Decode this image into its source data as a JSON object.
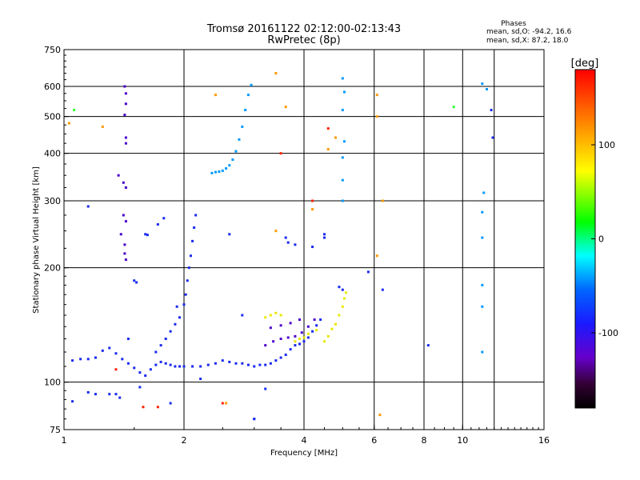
{
  "chart_data": {
    "type": "scatter",
    "title": "Tromsø 20161122 02:12:00-02:13:43",
    "subtitle": "RwPretec (8p)",
    "xlabel": "Frequency [MHz]",
    "ylabel": "Stationary phase Virtual Height [km]",
    "x_scale": "log",
    "y_scale": "log",
    "xlim": [
      1,
      16
    ],
    "ylim": [
      75,
      750
    ],
    "x_ticks": [
      1,
      2,
      4,
      6,
      8,
      10,
      16
    ],
    "x_tick_labels": [
      "1",
      "2",
      "4",
      "6",
      "8",
      "10",
      "16"
    ],
    "x_gridlines": [
      2,
      4,
      6,
      8,
      10,
      12
    ],
    "y_ticks": [
      75,
      100,
      200,
      300,
      400,
      500,
      600,
      750
    ],
    "y_tick_labels": [
      "75",
      "100",
      "200",
      "300",
      "400",
      "500",
      "600",
      "750"
    ],
    "y_gridlines": [
      100,
      200,
      300,
      400,
      500,
      600
    ],
    "grid": true,
    "phases_legend": {
      "header": "Phases",
      "line1": "mean, sd,O: -94.2, 16.6",
      "line2": "mean, sd,X: 87.2, 18.0"
    },
    "colorbar": {
      "label": "[deg]",
      "range": [
        -180,
        180
      ],
      "ticks": [
        100,
        0,
        -100
      ],
      "tick_labels": [
        "100",
        "0",
        "-100"
      ],
      "stops": [
        {
          "at": 0.0,
          "color": "#000000"
        },
        {
          "at": 0.07,
          "color": "#330033"
        },
        {
          "at": 0.15,
          "color": "#6600cc"
        },
        {
          "at": 0.25,
          "color": "#1a1aff"
        },
        {
          "at": 0.35,
          "color": "#0066ff"
        },
        {
          "at": 0.45,
          "color": "#00ffff"
        },
        {
          "at": 0.55,
          "color": "#00ff00"
        },
        {
          "at": 0.7,
          "color": "#ffff00"
        },
        {
          "at": 0.82,
          "color": "#ff9900"
        },
        {
          "at": 1.0,
          "color": "#ff0000"
        }
      ]
    },
    "point_colors": {
      "O_trace": "#1a2aee",
      "O_trace_dark": "#4a00cc",
      "X_trace": "#e8e800",
      "cyan_cusp": "#0099ff",
      "misc_red": "#ff2200",
      "misc_orange": "#ff9900",
      "misc_green": "#33ff33"
    },
    "series": [
      {
        "group": "O_low",
        "color_key": "O_trace",
        "points": [
          [
            1.05,
            114
          ],
          [
            1.1,
            115
          ],
          [
            1.15,
            115
          ],
          [
            1.2,
            116
          ],
          [
            1.25,
            121
          ],
          [
            1.3,
            123
          ],
          [
            1.35,
            119
          ],
          [
            1.4,
            115
          ],
          [
            1.45,
            112
          ],
          [
            1.5,
            109
          ],
          [
            1.55,
            106
          ],
          [
            1.6,
            104
          ],
          [
            1.65,
            108
          ],
          [
            1.7,
            111
          ],
          [
            1.75,
            113
          ],
          [
            1.8,
            112
          ],
          [
            1.85,
            111
          ],
          [
            1.9,
            110
          ],
          [
            1.95,
            110
          ],
          [
            2.0,
            110
          ],
          [
            2.1,
            110
          ],
          [
            2.2,
            110
          ],
          [
            2.3,
            111
          ],
          [
            2.4,
            112
          ],
          [
            2.5,
            114
          ],
          [
            2.6,
            113
          ],
          [
            2.7,
            112
          ],
          [
            2.8,
            112
          ],
          [
            2.9,
            111
          ],
          [
            3.0,
            110
          ],
          [
            3.1,
            111
          ],
          [
            3.2,
            111
          ],
          [
            3.3,
            112
          ],
          [
            3.4,
            114
          ],
          [
            3.5,
            116
          ],
          [
            3.6,
            118
          ],
          [
            3.7,
            122
          ],
          [
            3.8,
            125
          ],
          [
            3.9,
            126
          ],
          [
            4.0,
            128
          ],
          [
            4.1,
            131
          ],
          [
            4.2,
            136
          ],
          [
            4.3,
            141
          ],
          [
            4.4,
            146
          ]
        ]
      },
      {
        "group": "O_upper_branch",
        "color_key": "O_trace",
        "points": [
          [
            1.7,
            120
          ],
          [
            1.75,
            125
          ],
          [
            1.8,
            130
          ],
          [
            1.85,
            136
          ],
          [
            1.9,
            142
          ],
          [
            1.95,
            148
          ],
          [
            2.0,
            160
          ],
          [
            2.02,
            170
          ],
          [
            2.04,
            185
          ],
          [
            2.06,
            200
          ],
          [
            2.08,
            215
          ],
          [
            2.1,
            235
          ],
          [
            2.12,
            255
          ],
          [
            2.14,
            275
          ]
        ]
      },
      {
        "group": "O_mid_branch",
        "color_key": "O_trace_dark",
        "points": [
          [
            3.2,
            125
          ],
          [
            3.35,
            128
          ],
          [
            3.5,
            130
          ],
          [
            3.65,
            131
          ],
          [
            3.8,
            132
          ],
          [
            3.95,
            135
          ],
          [
            4.1,
            140
          ],
          [
            4.25,
            146
          ],
          [
            3.3,
            139
          ],
          [
            3.5,
            141
          ],
          [
            3.7,
            143
          ],
          [
            3.9,
            146
          ]
        ]
      },
      {
        "group": "O_scatter",
        "color_key": "O_trace",
        "points": [
          [
            1.05,
            89
          ],
          [
            1.15,
            94
          ],
          [
            1.2,
            93
          ],
          [
            1.3,
            93
          ],
          [
            1.35,
            93
          ],
          [
            1.38,
            91
          ],
          [
            1.45,
            130
          ],
          [
            1.5,
            185
          ],
          [
            1.52,
            183
          ],
          [
            1.6,
            245
          ],
          [
            1.62,
            244
          ],
          [
            1.72,
            260
          ],
          [
            1.78,
            270
          ],
          [
            1.92,
            158
          ],
          [
            2.2,
            102
          ],
          [
            2.6,
            245
          ],
          [
            2.8,
            150
          ],
          [
            3.0,
            80
          ],
          [
            3.2,
            96
          ],
          [
            3.6,
            240
          ],
          [
            3.65,
            233
          ],
          [
            3.8,
            230
          ],
          [
            4.2,
            227
          ],
          [
            4.5,
            245
          ],
          [
            4.9,
            178
          ],
          [
            5.0,
            175
          ]
        ]
      },
      {
        "group": "O_vertical_1p4",
        "color_key": "O_trace_dark",
        "points": [
          [
            1.42,
            600
          ],
          [
            1.43,
            575
          ],
          [
            1.43,
            540
          ],
          [
            1.42,
            505
          ],
          [
            1.43,
            440
          ],
          [
            1.43,
            425
          ],
          [
            1.37,
            350
          ],
          [
            1.41,
            335
          ],
          [
            1.43,
            325
          ],
          [
            1.41,
            275
          ],
          [
            1.43,
            265
          ],
          [
            1.39,
            245
          ],
          [
            1.42,
            230
          ],
          [
            1.42,
            218
          ],
          [
            1.43,
            210
          ]
        ]
      },
      {
        "group": "cyan_cusp",
        "color_key": "cyan_cusp",
        "points": [
          [
            2.35,
            355
          ],
          [
            2.4,
            357
          ],
          [
            2.45,
            358
          ],
          [
            2.5,
            360
          ],
          [
            2.55,
            365
          ],
          [
            2.6,
            372
          ],
          [
            2.65,
            385
          ],
          [
            2.7,
            405
          ],
          [
            2.75,
            435
          ],
          [
            2.8,
            470
          ],
          [
            2.85,
            520
          ],
          [
            2.9,
            570
          ],
          [
            2.95,
            605
          ]
        ]
      },
      {
        "group": "X_trace",
        "color_key": "X_trace",
        "points": [
          [
            3.2,
            148
          ],
          [
            3.3,
            150
          ],
          [
            3.4,
            152
          ],
          [
            3.5,
            150
          ],
          [
            3.8,
            128
          ],
          [
            3.9,
            130
          ],
          [
            4.0,
            131
          ],
          [
            4.1,
            134
          ],
          [
            4.3,
            137
          ],
          [
            4.5,
            128
          ],
          [
            4.6,
            132
          ],
          [
            4.7,
            138
          ],
          [
            4.8,
            142
          ],
          [
            4.9,
            150
          ],
          [
            5.0,
            158
          ],
          [
            5.05,
            166
          ],
          [
            5.1,
            172
          ]
        ]
      },
      {
        "group": "cyan_markers",
        "color_key": "cyan_cusp",
        "points": [
          [
            5.0,
            630
          ],
          [
            5.05,
            580
          ],
          [
            5.0,
            520
          ],
          [
            5.05,
            430
          ],
          [
            5.0,
            390
          ],
          [
            5.0,
            340
          ],
          [
            5.0,
            300
          ],
          [
            11.2,
            610
          ],
          [
            11.5,
            590
          ],
          [
            11.3,
            315
          ],
          [
            11.2,
            280
          ],
          [
            11.2,
            240
          ],
          [
            11.2,
            180
          ],
          [
            11.2,
            158
          ],
          [
            11.2,
            120
          ]
        ]
      },
      {
        "group": "misc_points",
        "color_key": "misc_orange",
        "points": [
          [
            1.03,
            480
          ],
          [
            1.25,
            470
          ],
          [
            2.4,
            570
          ],
          [
            3.4,
            650
          ],
          [
            3.6,
            530
          ],
          [
            4.6,
            410
          ],
          [
            4.8,
            440
          ],
          [
            6.1,
            570
          ],
          [
            6.1,
            500
          ],
          [
            6.3,
            300
          ],
          [
            2.55,
            88
          ],
          [
            3.4,
            250
          ],
          [
            4.2,
            285
          ],
          [
            6.1,
            215
          ],
          [
            6.2,
            82
          ]
        ]
      },
      {
        "group": "misc_red",
        "color_key": "misc_red",
        "points": [
          [
            1.58,
            86
          ],
          [
            1.72,
            86
          ],
          [
            2.5,
            88
          ],
          [
            3.5,
            400
          ],
          [
            4.2,
            300
          ],
          [
            4.6,
            465
          ],
          [
            1.35,
            108
          ]
        ]
      },
      {
        "group": "misc_green",
        "color_key": "misc_green",
        "points": [
          [
            1.06,
            520
          ],
          [
            9.5,
            530
          ]
        ]
      },
      {
        "group": "misc_blue",
        "color_key": "O_trace",
        "points": [
          [
            1.15,
            290
          ],
          [
            1.55,
            97
          ],
          [
            1.85,
            88
          ],
          [
            3.0,
            80
          ],
          [
            4.5,
            240
          ],
          [
            5.8,
            195
          ],
          [
            6.3,
            175
          ],
          [
            8.2,
            125
          ],
          [
            11.8,
            520
          ],
          [
            11.9,
            440
          ]
        ]
      }
    ]
  }
}
